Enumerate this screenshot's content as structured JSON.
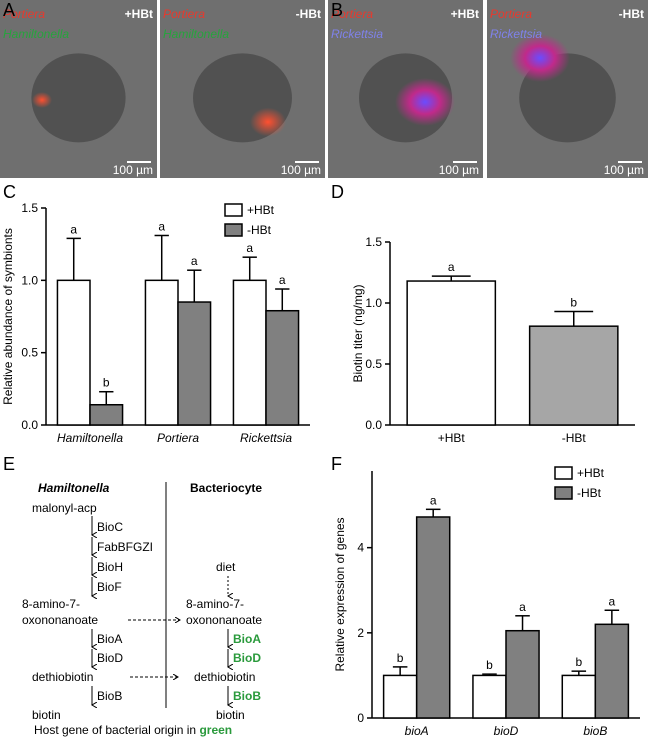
{
  "panel_labels": [
    "A",
    "B",
    "C",
    "D",
    "E",
    "F"
  ],
  "images": [
    {
      "labels": [
        {
          "text": "Portiera",
          "color": "#e8392d"
        },
        {
          "text": "Hamiltonella",
          "color": "#25a53c"
        }
      ],
      "condition": "+HBt",
      "scale": "100 µm"
    },
    {
      "labels": [
        {
          "text": "Portiera",
          "color": "#e8392d"
        },
        {
          "text": "Hamiltonella",
          "color": "#25a53c"
        }
      ],
      "condition": "-HBt",
      "scale": "100 µm"
    },
    {
      "labels": [
        {
          "text": "Portiera",
          "color": "#e8392d"
        },
        {
          "text": "Rickettsia",
          "color": "#7f82ea"
        }
      ],
      "condition": "+HBt",
      "scale": "100 µm"
    },
    {
      "labels": [
        {
          "text": "Portiera",
          "color": "#e8392d"
        },
        {
          "text": "Rickettsia",
          "color": "#7f82ea"
        }
      ],
      "condition": "-HBt",
      "scale": "100 µm"
    }
  ],
  "chart_data": [
    {
      "type": "bar",
      "ylabel": "Relative abundance of symbionts",
      "categories": [
        "Hamiltonella",
        "Portiera",
        "Rickettsia"
      ],
      "series": [
        {
          "name": "+HBt",
          "color": "#ffffff",
          "values": [
            1,
            1,
            1
          ],
          "errors": [
            0.29,
            0.31,
            0.16
          ],
          "letters": [
            "a",
            "a",
            "a"
          ]
        },
        {
          "name": "-HBt",
          "color": "#808080",
          "values": [
            0.14,
            0.85,
            0.79
          ],
          "errors": [
            0.09,
            0.22,
            0.15
          ],
          "letters": [
            "b",
            "a",
            "a"
          ]
        }
      ],
      "ylim": [
        0,
        1.5
      ],
      "yticks": [
        {
          "value": 0,
          "label": "0.0"
        },
        0.5,
        {
          "value": 1,
          "label": "1.0"
        },
        1.5
      ],
      "legend": "upper right"
    },
    {
      "type": "bar",
      "ylabel": "Biotin titer (ng/mg)",
      "categories": [
        "+HBt",
        "-HBt"
      ],
      "values": [
        1.18,
        0.81
      ],
      "errors": [
        0.04,
        0.12
      ],
      "letters": [
        "a",
        "b"
      ],
      "colors": [
        "#ffffff",
        "#a6a6a6"
      ],
      "ylim": [
        0,
        1.5
      ],
      "yticks": [
        {
          "value": 0,
          "label": "0.0"
        },
        0.5,
        {
          "value": 1,
          "label": "1.0"
        },
        1.5
      ]
    },
    {
      "type": "bar",
      "ylabel": "Relative expression of genes",
      "categories": [
        "bioA",
        "bioD",
        "bioB"
      ],
      "series": [
        {
          "name": "+HBt",
          "color": "#ffffff",
          "values": [
            1,
            1,
            1
          ],
          "errors": [
            0.2,
            0.03,
            0.1
          ],
          "letters": [
            "b",
            "b",
            "b"
          ]
        },
        {
          "name": "-HBt",
          "color": "#808080",
          "values": [
            4.72,
            2.05,
            2.2
          ],
          "errors": [
            0.18,
            0.35,
            0.33
          ],
          "letters": [
            "a",
            "a",
            "a"
          ]
        }
      ],
      "ylim": [
        0,
        5.8
      ],
      "yticks": [
        0,
        2,
        4
      ],
      "legend": "upper right"
    }
  ],
  "pathway": {
    "left_header": "Hamiltonella",
    "right_header": "Bacteriocyte",
    "left": [
      "malonyl-acp",
      "BioC",
      "FabBFGZI",
      "BioH",
      "BioF",
      "8-amino-7-",
      "oxononanoate",
      "BioA",
      "BioD",
      "dethiobiotin",
      "BioB",
      "biotin"
    ],
    "right": [
      "diet",
      "8-amino-7-",
      "oxononanoate",
      "BioA",
      "BioD",
      "dethiobiotin",
      "BioB",
      "biotin"
    ],
    "footer": "Host gene of bacterial origin in",
    "footer_highlight": "green"
  }
}
